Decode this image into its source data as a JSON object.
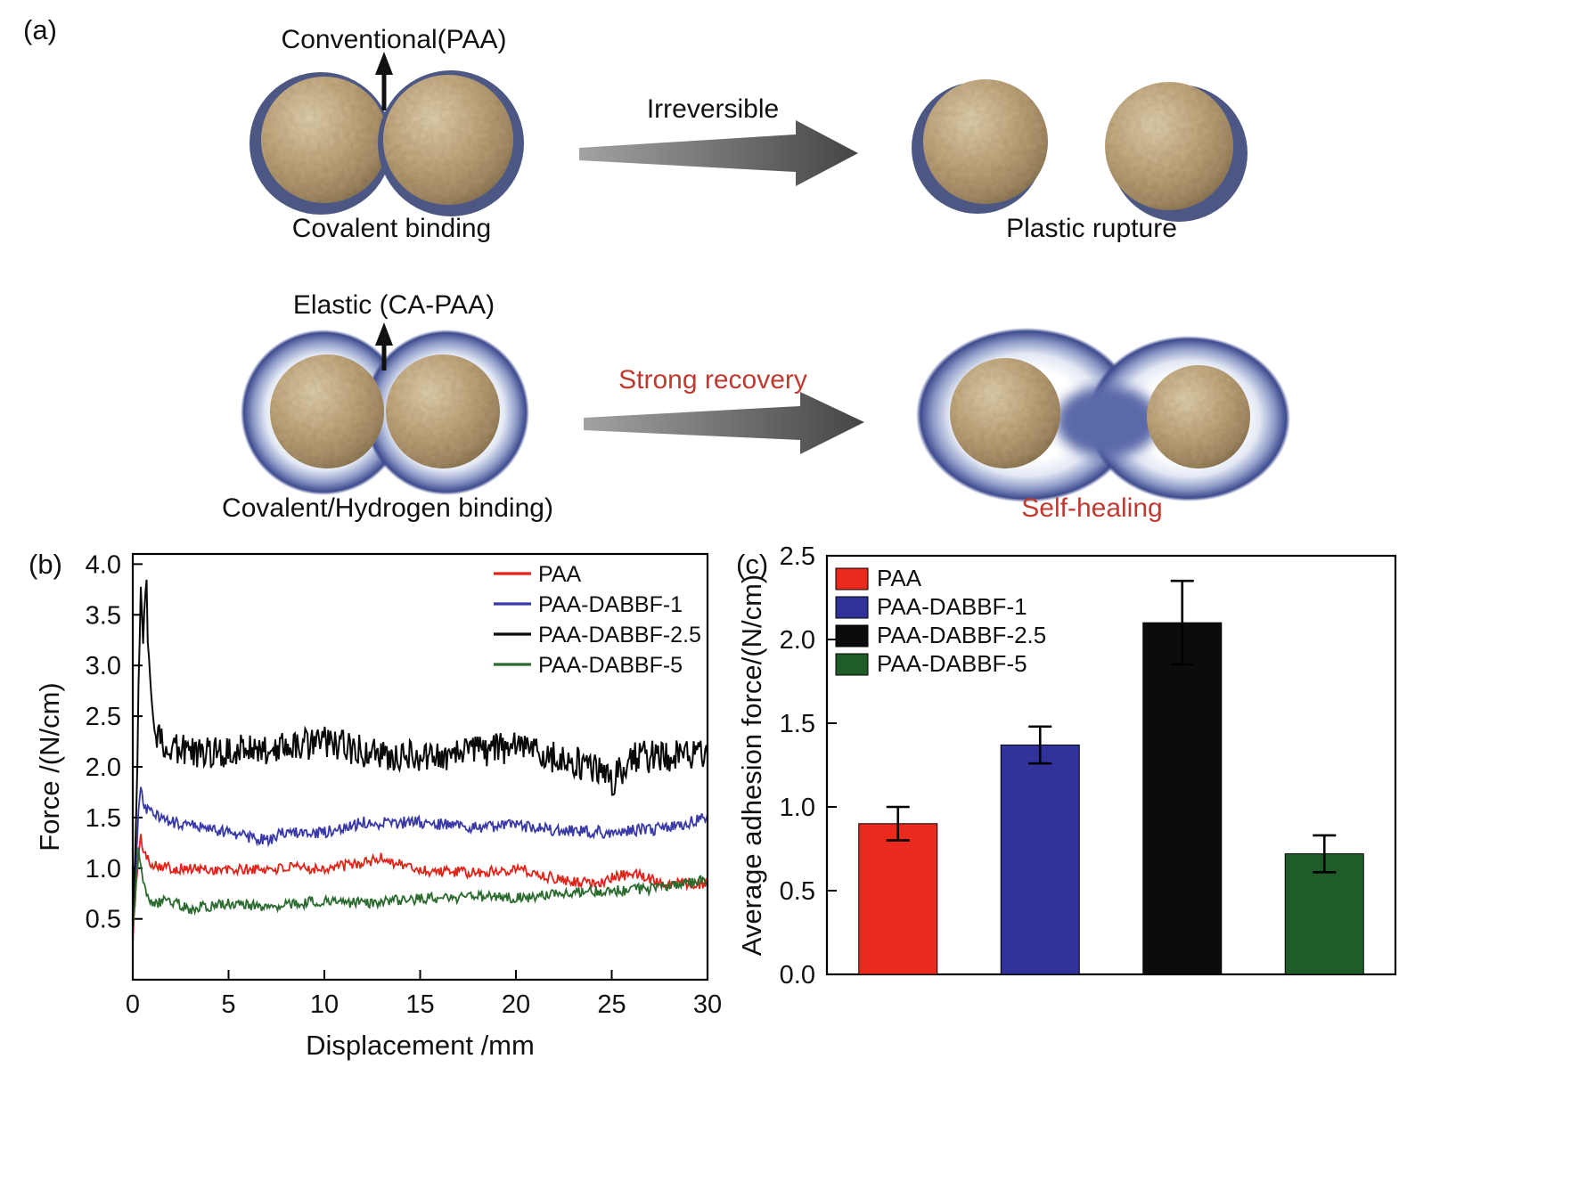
{
  "figure": {
    "panel_a_label": "(a)",
    "panel_b_label": "(b)",
    "panel_c_label": "(c)"
  },
  "diagram": {
    "conventional": {
      "title": "Conventional(PAA)",
      "binding_caption": "Covalent binding",
      "process_label": "Irreversible",
      "result_label": "Plastic rupture"
    },
    "elastic": {
      "title": "Elastic (CA-PAA)",
      "binding_caption": "Covalent/Hydrogen binding)",
      "process_label": "Strong recovery",
      "result_label": "Self-healing"
    },
    "colors": {
      "ring": "#4d5784",
      "glow_edge": "#3e4c8f",
      "bridge": "#5a69a8",
      "sphere": "#b89e75",
      "arrow_gray": "#6e6e6e",
      "accent_red": "#c13a30"
    }
  },
  "chart_data": [
    {
      "type": "line",
      "panel": "(b)",
      "xlabel": "Displacement /mm",
      "ylabel": "Force /(N/cm)",
      "xlim": [
        0,
        30
      ],
      "ylim": [
        0,
        4.0
      ],
      "xticks": [
        0,
        5,
        10,
        15,
        20,
        25,
        30
      ],
      "yticks": [
        0.5,
        1.0,
        1.5,
        2.0,
        2.5,
        3.0,
        3.5,
        4.0
      ],
      "grid": false,
      "legend_position": "top-right",
      "series": [
        {
          "name": "PAA",
          "color": "#e2231a",
          "noise": 0.055,
          "x": [
            0,
            0.2,
            0.4,
            0.7,
            1,
            2,
            5,
            8,
            10,
            12,
            13,
            15,
            18,
            20,
            22,
            24,
            26,
            28,
            30
          ],
          "y": [
            0.3,
            0.9,
            1.3,
            1.1,
            1.05,
            1.0,
            0.98,
            1.0,
            1.0,
            1.05,
            1.1,
            0.98,
            0.95,
            1.0,
            0.9,
            0.85,
            0.95,
            0.85,
            0.85
          ]
        },
        {
          "name": "PAA-DABBF-1",
          "color": "#3939a8",
          "noise": 0.06,
          "x": [
            0,
            0.2,
            0.4,
            0.6,
            1,
            2,
            4,
            6,
            7,
            8,
            10,
            12,
            15,
            18,
            20,
            22,
            25,
            28,
            30
          ],
          "y": [
            0.5,
            1.2,
            1.85,
            1.6,
            1.55,
            1.45,
            1.4,
            1.3,
            1.28,
            1.35,
            1.35,
            1.45,
            1.45,
            1.4,
            1.42,
            1.38,
            1.35,
            1.4,
            1.5
          ]
        },
        {
          "name": "PAA-DABBF-2.5",
          "color": "#0a0a0a",
          "noise": 0.16,
          "x": [
            0,
            0.2,
            0.4,
            0.55,
            0.7,
            0.85,
            1,
            1.3,
            2,
            3,
            5,
            8,
            10,
            12,
            15,
            18,
            20,
            22,
            24,
            25,
            26,
            28,
            30
          ],
          "y": [
            0.35,
            1.8,
            3.7,
            3.3,
            3.8,
            3.0,
            2.5,
            2.3,
            2.2,
            2.15,
            2.15,
            2.2,
            2.25,
            2.15,
            2.1,
            2.15,
            2.2,
            2.1,
            2.0,
            1.85,
            2.1,
            2.1,
            2.15
          ]
        },
        {
          "name": "PAA-DABBF-5",
          "color": "#2c6b2f",
          "noise": 0.055,
          "x": [
            0,
            0.3,
            0.5,
            0.8,
            1,
            2,
            3,
            5,
            7,
            10,
            12,
            15,
            18,
            20,
            22,
            25,
            27,
            29,
            30
          ],
          "y": [
            0.35,
            1.25,
            0.9,
            0.7,
            0.65,
            0.68,
            0.6,
            0.65,
            0.62,
            0.68,
            0.65,
            0.7,
            0.72,
            0.7,
            0.75,
            0.78,
            0.8,
            0.85,
            0.9
          ]
        }
      ]
    },
    {
      "type": "bar",
      "panel": "(c)",
      "ylabel": "Average adhesion force/(N/cm)",
      "ylim": [
        0,
        2.5
      ],
      "yticks": [
        0.0,
        0.5,
        1.0,
        1.5,
        2.0,
        2.5
      ],
      "grid": false,
      "legend_position": "top-left",
      "categories": [
        "PAA",
        "PAA-DABBF-1",
        "PAA-DABBF-2.5",
        "PAA-DABBF-5"
      ],
      "values": [
        0.9,
        1.37,
        2.1,
        0.72
      ],
      "errors": [
        0.1,
        0.11,
        0.25,
        0.11
      ],
      "colors": [
        "#ea2a1d",
        "#32329b",
        "#0c0c0c",
        "#205c2a"
      ]
    }
  ]
}
